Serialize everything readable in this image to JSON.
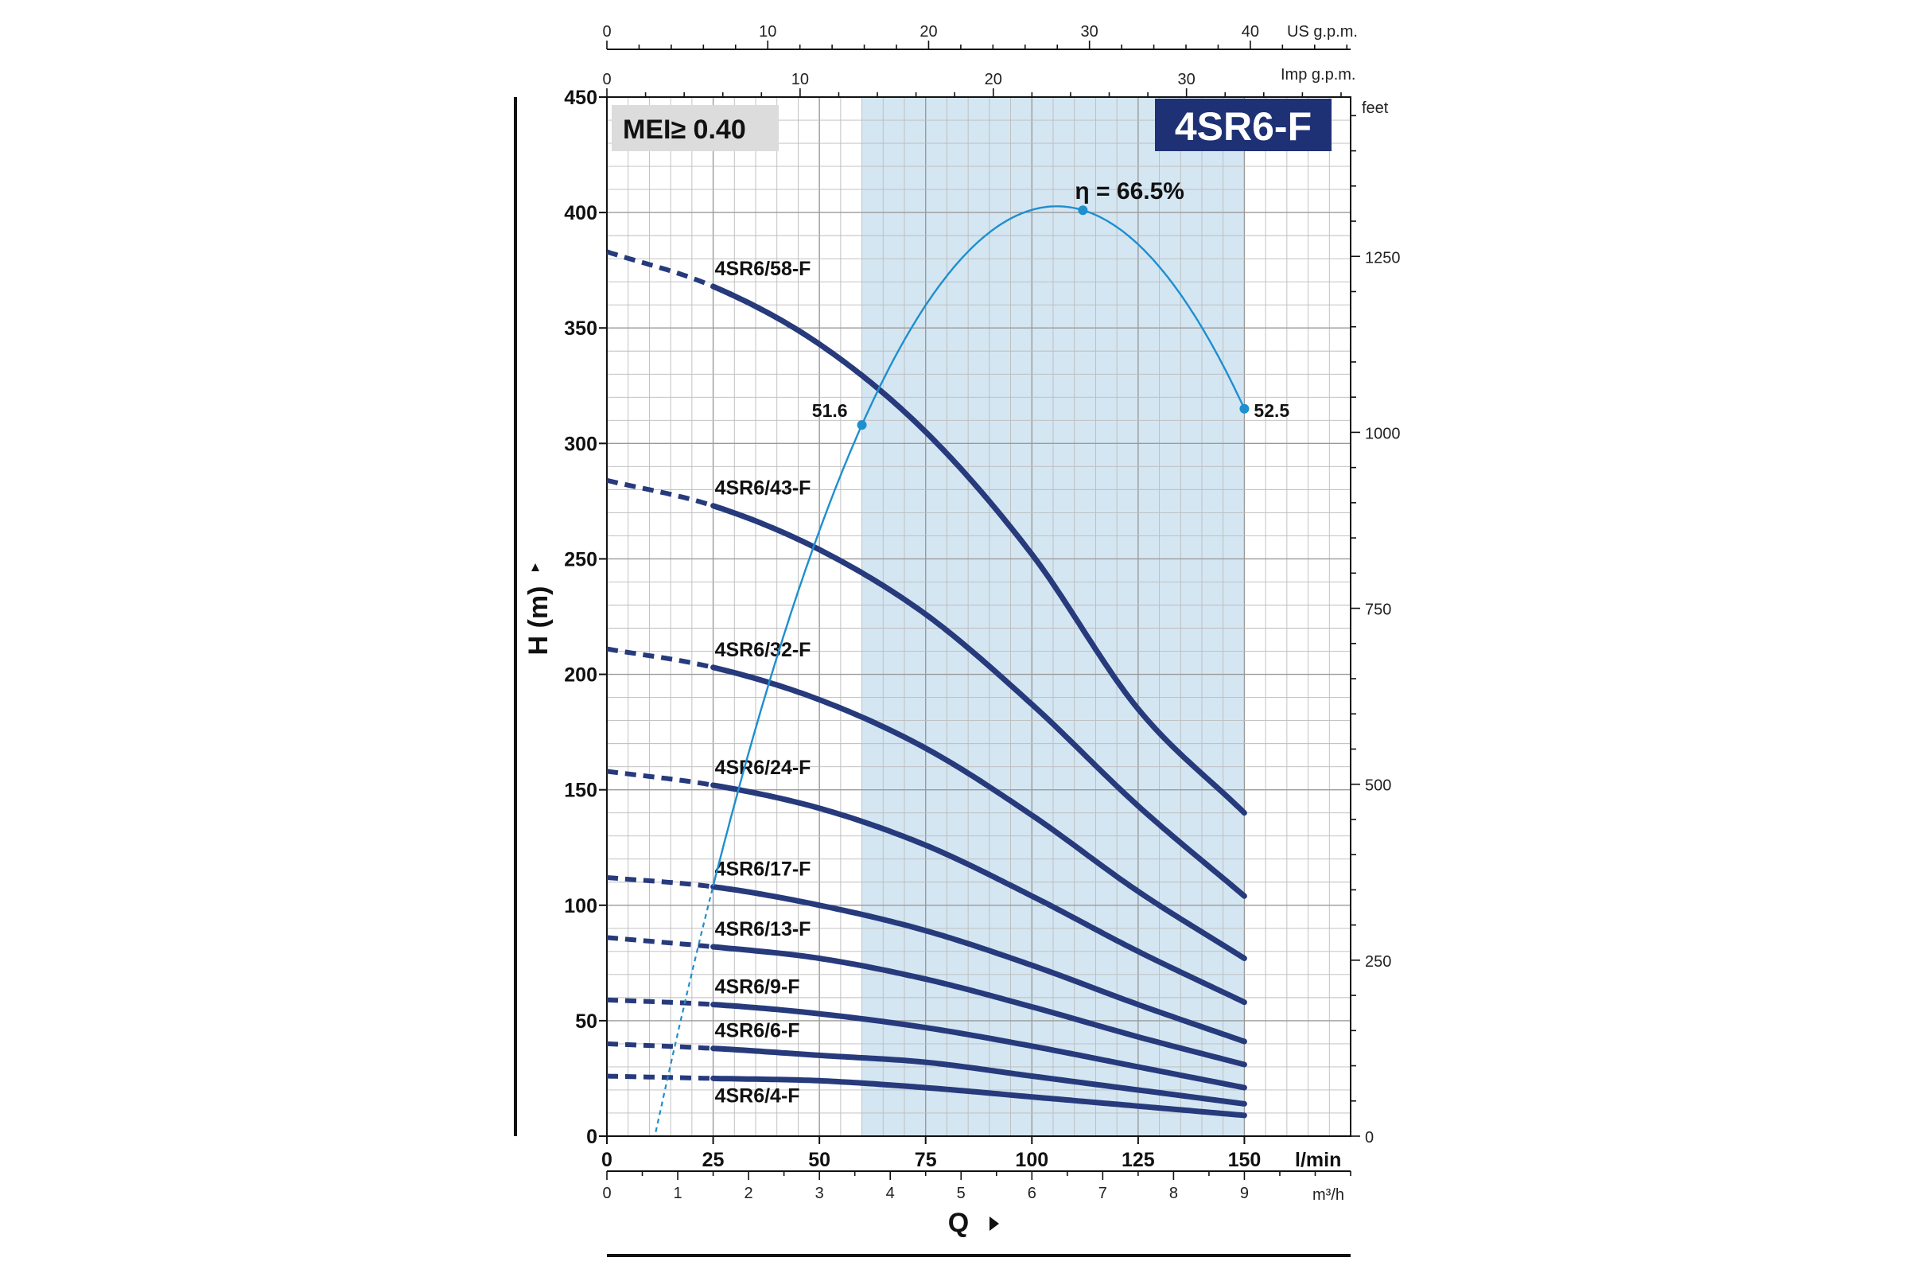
{
  "chart_data": {
    "type": "line",
    "title": "4SR6-F",
    "badge": "MEI≥ 0.40",
    "xlabel": "Q",
    "ylabel": "H  (m)",
    "x_unit": "l/min",
    "xlim": [
      0,
      175
    ],
    "ylim": [
      0,
      450
    ],
    "x_ticks": [
      0,
      25,
      50,
      75,
      100,
      125,
      150
    ],
    "y_ticks": [
      0,
      50,
      100,
      150,
      200,
      250,
      300,
      350,
      400,
      450
    ],
    "operating_range": [
      60,
      150
    ],
    "secondary_axes": {
      "us_gpm": {
        "unit": "US g.p.m.",
        "ticks": [
          0,
          10,
          20,
          30,
          40
        ],
        "tick_labels": [
          "0",
          "10",
          "20",
          "30",
          "40"
        ]
      },
      "imp_gpm": {
        "unit": "Imp g.p.m.",
        "ticks": [
          0,
          10,
          20,
          30
        ],
        "tick_labels": [
          "0",
          "10",
          "20",
          "30"
        ]
      },
      "m3h": {
        "unit": "m³/h",
        "ticks": [
          0,
          1,
          2,
          3,
          4,
          5,
          6,
          7,
          8,
          9
        ],
        "tick_labels": [
          "0",
          "1",
          "2",
          "3",
          "4",
          "5",
          "6",
          "7",
          "8",
          "9"
        ]
      },
      "feet": {
        "unit": "feet",
        "ticks": [
          0,
          250,
          500,
          750,
          1000,
          1250
        ],
        "tick_labels": [
          "0",
          "250",
          "500",
          "750",
          "1000",
          "1250"
        ]
      }
    },
    "series": [
      {
        "name": "4SR6/58-F",
        "x": [
          0,
          25,
          50,
          75,
          100,
          125,
          150
        ],
        "y": [
          383,
          368,
          343,
          305,
          252,
          185,
          140
        ]
      },
      {
        "name": "4SR6/43-F",
        "x": [
          0,
          25,
          50,
          75,
          100,
          125,
          150
        ],
        "y": [
          284,
          273,
          254,
          226,
          187,
          143,
          104
        ]
      },
      {
        "name": "4SR6/32-F",
        "x": [
          0,
          25,
          50,
          75,
          100,
          125,
          150
        ],
        "y": [
          211,
          203,
          189,
          168,
          139,
          106,
          77
        ]
      },
      {
        "name": "4SR6/24-F",
        "x": [
          0,
          25,
          50,
          75,
          100,
          125,
          150
        ],
        "y": [
          158,
          152,
          142,
          126,
          104,
          80,
          58
        ]
      },
      {
        "name": "4SR6/17-F",
        "x": [
          0,
          25,
          50,
          75,
          100,
          125,
          150
        ],
        "y": [
          112,
          108,
          100,
          89,
          74,
          57,
          41
        ]
      },
      {
        "name": "4SR6/13-F",
        "x": [
          0,
          25,
          50,
          75,
          100,
          125,
          150
        ],
        "y": [
          86,
          82,
          77,
          68,
          56,
          43,
          31
        ]
      },
      {
        "name": "4SR6/9-F",
        "x": [
          0,
          25,
          50,
          75,
          100,
          125,
          150
        ],
        "y": [
          59,
          57,
          53,
          47,
          39,
          30,
          21
        ]
      },
      {
        "name": "4SR6/6-F",
        "x": [
          0,
          25,
          50,
          75,
          100,
          125,
          150
        ],
        "y": [
          40,
          38,
          35,
          32,
          26,
          20,
          14
        ]
      },
      {
        "name": "4SR6/4-F",
        "x": [
          0,
          25,
          50,
          75,
          100,
          125,
          150
        ],
        "y": [
          26,
          25,
          24,
          21,
          17,
          13,
          9
        ]
      }
    ],
    "efficiency": {
      "peak_label": "η = 66.5%",
      "points": [
        {
          "x": 60,
          "y": 308,
          "label": "51.6"
        },
        {
          "x": 112,
          "y": 401,
          "label": ""
        },
        {
          "x": 150,
          "y": 315,
          "label": "52.5"
        }
      ]
    },
    "colors": {
      "curve": "#263a7c",
      "efficiency": "#1e8fcf",
      "band": "#d4e6f2",
      "badge_bg": "#1f3175",
      "grid": "#bcbcbc"
    }
  }
}
